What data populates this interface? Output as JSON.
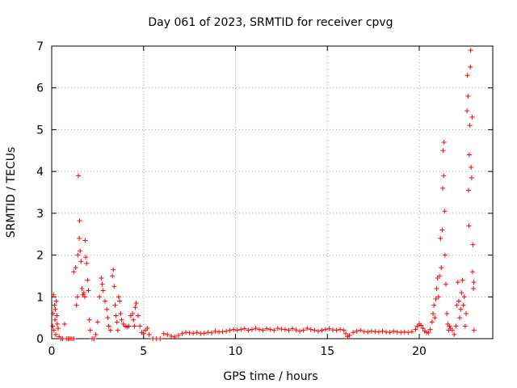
{
  "chart_data": {
    "type": "scatter",
    "title": "Day 061 of 2023, SRMTID for receiver cpvg",
    "xlabel": "GPS time / hours",
    "ylabel": "SRMTID / TECUs",
    "xlim": [
      0,
      24
    ],
    "ylim": [
      0,
      7
    ],
    "xticks": [
      0,
      5,
      10,
      15,
      20
    ],
    "yticks": [
      0,
      1,
      2,
      3,
      4,
      5,
      6,
      7
    ],
    "grid": true,
    "marker": "+",
    "color": "#ff0000",
    "series": [
      {
        "name": "SRMTID",
        "points": [
          [
            0.05,
            0.3
          ],
          [
            0.08,
            0.6
          ],
          [
            0.1,
            1.05
          ],
          [
            0.12,
            0.2
          ],
          [
            0.15,
            0.8
          ],
          [
            0.18,
            0.45
          ],
          [
            0.2,
            0.7
          ],
          [
            0.22,
            0.1
          ],
          [
            0.25,
            0.9
          ],
          [
            0.28,
            0.55
          ],
          [
            0.3,
            0.35
          ],
          [
            0.35,
            0.25
          ],
          [
            0.4,
            0.05
          ],
          [
            0.5,
            0.0
          ],
          [
            0.6,
            0.0
          ],
          [
            0.7,
            0.35
          ],
          [
            0.8,
            0.0
          ],
          [
            0.9,
            0.0
          ],
          [
            1.0,
            0.0
          ],
          [
            1.1,
            0.0
          ],
          [
            1.2,
            0.0
          ],
          [
            1.2,
            1.6
          ],
          [
            1.3,
            1.7
          ],
          [
            1.35,
            0.8
          ],
          [
            1.4,
            1.0
          ],
          [
            1.42,
            2.0
          ],
          [
            1.45,
            3.9
          ],
          [
            1.5,
            2.4
          ],
          [
            1.52,
            2.82
          ],
          [
            1.55,
            2.1
          ],
          [
            1.6,
            1.85
          ],
          [
            1.65,
            1.2
          ],
          [
            1.7,
            1.05
          ],
          [
            1.75,
            1.1
          ],
          [
            1.8,
            1.0
          ],
          [
            1.82,
            2.35
          ],
          [
            1.85,
            1.95
          ],
          [
            1.9,
            1.8
          ],
          [
            1.95,
            1.4
          ],
          [
            2.0,
            1.15
          ],
          [
            2.05,
            0.45
          ],
          [
            2.1,
            0.2
          ],
          [
            2.2,
            0.0
          ],
          [
            2.3,
            0.0
          ],
          [
            2.4,
            0.1
          ],
          [
            2.5,
            0.4
          ],
          [
            2.6,
            1.0
          ],
          [
            2.7,
            1.45
          ],
          [
            2.75,
            1.3
          ],
          [
            2.8,
            1.15
          ],
          [
            2.9,
            0.9
          ],
          [
            3.0,
            0.7
          ],
          [
            3.05,
            0.5
          ],
          [
            3.1,
            0.3
          ],
          [
            3.2,
            0.2
          ],
          [
            3.3,
            1.5
          ],
          [
            3.35,
            1.65
          ],
          [
            3.4,
            1.25
          ],
          [
            3.45,
            0.8
          ],
          [
            3.5,
            0.55
          ],
          [
            3.55,
            0.4
          ],
          [
            3.6,
            0.2
          ],
          [
            3.65,
            1.0
          ],
          [
            3.7,
            0.9
          ],
          [
            3.75,
            0.6
          ],
          [
            3.8,
            0.45
          ],
          [
            3.9,
            0.35
          ],
          [
            4.0,
            0.3
          ],
          [
            4.1,
            0.28
          ],
          [
            4.2,
            0.3
          ],
          [
            4.3,
            0.55
          ],
          [
            4.4,
            0.6
          ],
          [
            4.45,
            0.45
          ],
          [
            4.5,
            0.3
          ],
          [
            4.55,
            0.75
          ],
          [
            4.6,
            0.85
          ],
          [
            4.7,
            0.55
          ],
          [
            4.8,
            0.3
          ],
          [
            4.9,
            0.15
          ],
          [
            5.0,
            0.12
          ],
          [
            5.1,
            0.2
          ],
          [
            5.2,
            0.25
          ],
          [
            5.3,
            0.1
          ],
          [
            5.5,
            0.0
          ],
          [
            5.7,
            0.0
          ],
          [
            5.9,
            0.0
          ],
          [
            6.1,
            0.12
          ],
          [
            6.3,
            0.1
          ],
          [
            6.5,
            0.06
          ],
          [
            6.7,
            0.04
          ],
          [
            6.9,
            0.08
          ],
          [
            7.1,
            0.12
          ],
          [
            7.3,
            0.15
          ],
          [
            7.5,
            0.14
          ],
          [
            7.7,
            0.13
          ],
          [
            7.9,
            0.15
          ],
          [
            8.1,
            0.12
          ],
          [
            8.3,
            0.13
          ],
          [
            8.5,
            0.15
          ],
          [
            8.7,
            0.14
          ],
          [
            8.9,
            0.18
          ],
          [
            9.1,
            0.16
          ],
          [
            9.3,
            0.17
          ],
          [
            9.5,
            0.18
          ],
          [
            9.7,
            0.2
          ],
          [
            9.9,
            0.22
          ],
          [
            10.1,
            0.2
          ],
          [
            10.3,
            0.22
          ],
          [
            10.5,
            0.24
          ],
          [
            10.7,
            0.2
          ],
          [
            10.9,
            0.22
          ],
          [
            11.1,
            0.25
          ],
          [
            11.3,
            0.22
          ],
          [
            11.5,
            0.2
          ],
          [
            11.7,
            0.24
          ],
          [
            11.9,
            0.22
          ],
          [
            12.1,
            0.2
          ],
          [
            12.3,
            0.25
          ],
          [
            12.5,
            0.23
          ],
          [
            12.7,
            0.22
          ],
          [
            12.9,
            0.2
          ],
          [
            13.1,
            0.24
          ],
          [
            13.3,
            0.21
          ],
          [
            13.5,
            0.18
          ],
          [
            13.7,
            0.2
          ],
          [
            13.9,
            0.25
          ],
          [
            14.1,
            0.22
          ],
          [
            14.3,
            0.2
          ],
          [
            14.5,
            0.18
          ],
          [
            14.7,
            0.2
          ],
          [
            14.9,
            0.22
          ],
          [
            15.1,
            0.24
          ],
          [
            15.3,
            0.21
          ],
          [
            15.5,
            0.2
          ],
          [
            15.7,
            0.22
          ],
          [
            15.9,
            0.2
          ],
          [
            16.0,
            0.12
          ],
          [
            16.1,
            0.05
          ],
          [
            16.2,
            0.08
          ],
          [
            16.4,
            0.15
          ],
          [
            16.6,
            0.18
          ],
          [
            16.8,
            0.2
          ],
          [
            17.0,
            0.17
          ],
          [
            17.2,
            0.16
          ],
          [
            17.4,
            0.18
          ],
          [
            17.6,
            0.17
          ],
          [
            17.8,
            0.16
          ],
          [
            18.0,
            0.18
          ],
          [
            18.2,
            0.16
          ],
          [
            18.4,
            0.15
          ],
          [
            18.6,
            0.18
          ],
          [
            18.8,
            0.16
          ],
          [
            19.0,
            0.15
          ],
          [
            19.2,
            0.16
          ],
          [
            19.4,
            0.15
          ],
          [
            19.6,
            0.17
          ],
          [
            19.8,
            0.22
          ],
          [
            19.9,
            0.3
          ],
          [
            20.0,
            0.35
          ],
          [
            20.1,
            0.32
          ],
          [
            20.2,
            0.25
          ],
          [
            20.3,
            0.18
          ],
          [
            20.4,
            0.15
          ],
          [
            20.5,
            0.14
          ],
          [
            20.6,
            0.22
          ],
          [
            20.7,
            0.4
          ],
          [
            20.75,
            0.6
          ],
          [
            20.8,
            0.8
          ],
          [
            20.85,
            0.5
          ],
          [
            20.9,
            0.95
          ],
          [
            20.95,
            1.2
          ],
          [
            21.0,
            1.45
          ],
          [
            21.05,
            1.0
          ],
          [
            21.1,
            1.5
          ],
          [
            21.15,
            2.4
          ],
          [
            21.2,
            1.7
          ],
          [
            21.25,
            2.6
          ],
          [
            21.28,
            3.6
          ],
          [
            21.3,
            4.5
          ],
          [
            21.33,
            3.9
          ],
          [
            21.35,
            4.7
          ],
          [
            21.38,
            3.05
          ],
          [
            21.4,
            2.0
          ],
          [
            21.45,
            1.3
          ],
          [
            21.5,
            0.6
          ],
          [
            21.55,
            0.35
          ],
          [
            21.6,
            0.2
          ],
          [
            21.65,
            0.3
          ],
          [
            21.7,
            0.25
          ],
          [
            21.8,
            0.2
          ],
          [
            21.9,
            0.1
          ],
          [
            22.0,
            0.3
          ],
          [
            22.05,
            0.8
          ],
          [
            22.1,
            1.35
          ],
          [
            22.15,
            0.9
          ],
          [
            22.2,
            0.5
          ],
          [
            22.25,
            0.7
          ],
          [
            22.3,
            1.1
          ],
          [
            22.35,
            1.4
          ],
          [
            22.4,
            0.8
          ],
          [
            22.45,
            1.0
          ],
          [
            22.5,
            0.3
          ],
          [
            22.55,
            0.6
          ],
          [
            22.6,
            5.45
          ],
          [
            22.62,
            6.3
          ],
          [
            22.65,
            5.8
          ],
          [
            22.68,
            3.55
          ],
          [
            22.7,
            2.7
          ],
          [
            22.72,
            4.4
          ],
          [
            22.75,
            5.1
          ],
          [
            22.78,
            6.5
          ],
          [
            22.8,
            6.9
          ],
          [
            22.82,
            4.1
          ],
          [
            22.85,
            3.85
          ],
          [
            22.88,
            5.3
          ],
          [
            22.9,
            1.6
          ],
          [
            22.92,
            2.25
          ],
          [
            22.95,
            1.2
          ],
          [
            22.97,
            1.35
          ],
          [
            22.98,
            0.2
          ]
        ]
      }
    ]
  }
}
